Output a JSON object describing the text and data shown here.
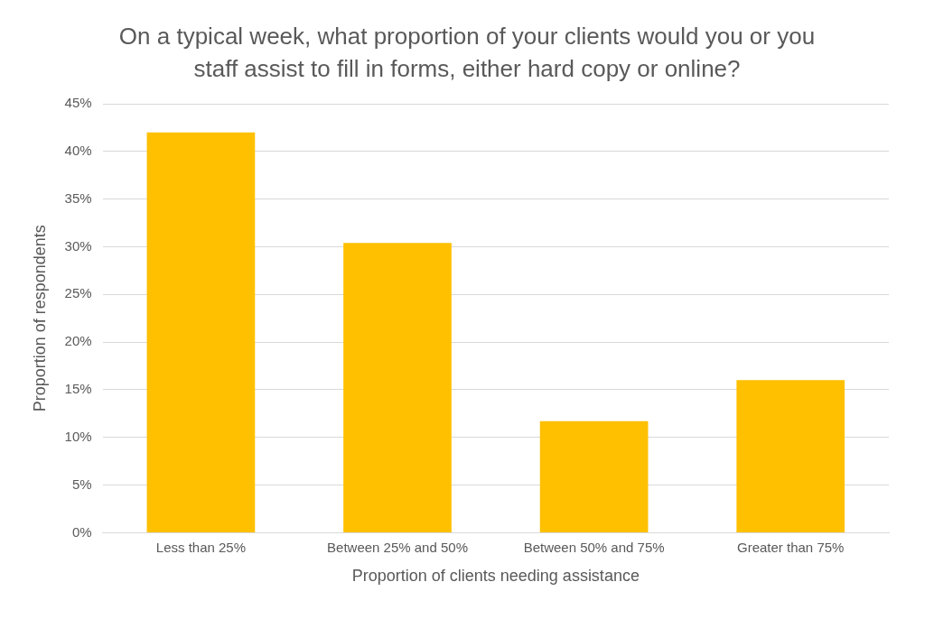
{
  "chart_data": {
    "type": "bar",
    "title": "On a typical week, what proportion of your clients would you or you staff assist to fill in forms, either hard copy or online?",
    "xlabel": "Proportion of clients needing assistance",
    "ylabel": "Proportion of respondents",
    "categories": [
      "Less than 25%",
      "Between 25% and 50%",
      "Between 50% and 75%",
      "Greater than 75%"
    ],
    "values": [
      42,
      30.4,
      11.7,
      16
    ],
    "color": "#ffc000",
    "ylim": [
      0,
      45
    ],
    "yticks": [
      {
        "value": 0,
        "label": "0%"
      },
      {
        "value": 5,
        "label": "5%"
      },
      {
        "value": 10,
        "label": "10%"
      },
      {
        "value": 15,
        "label": "15%"
      },
      {
        "value": 20,
        "label": "20%"
      },
      {
        "value": 25,
        "label": "25%"
      },
      {
        "value": 30,
        "label": "30%"
      },
      {
        "value": 35,
        "label": "35%"
      },
      {
        "value": 40,
        "label": "40%"
      },
      {
        "value": 45,
        "label": "45%"
      }
    ],
    "grid": "y",
    "legend": false
  }
}
